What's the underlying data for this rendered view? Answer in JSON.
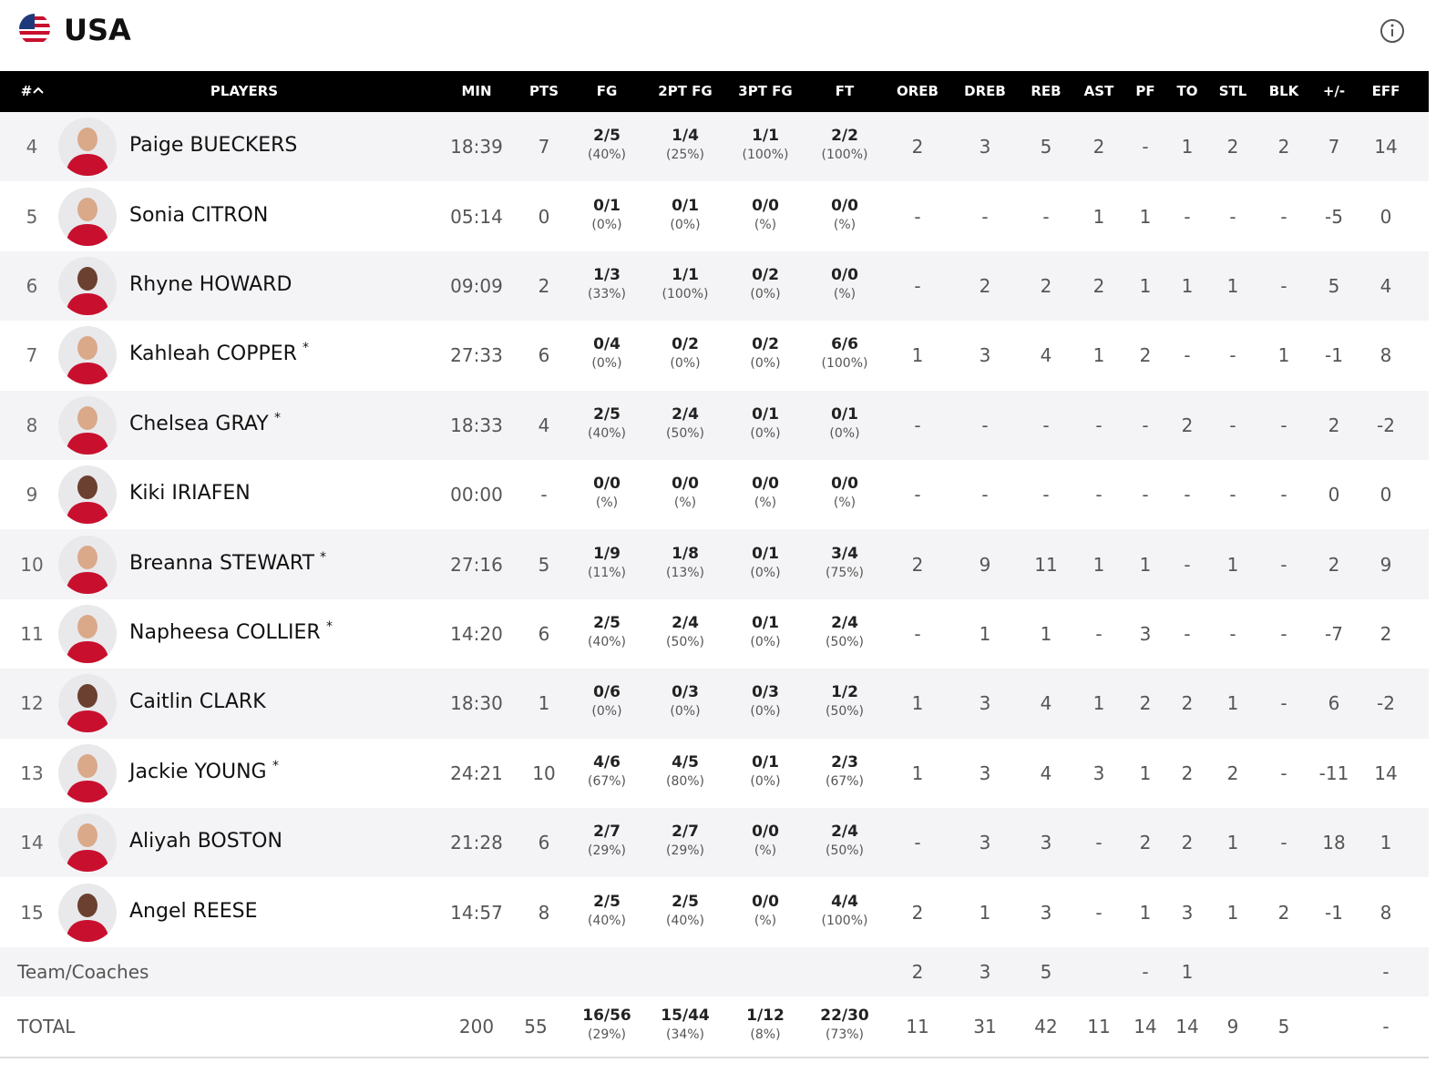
{
  "header": {
    "title": "USA"
  },
  "table": {
    "columns": [
      "#",
      "PLAYERS",
      "MIN",
      "PTS",
      "FG",
      "2PT FG",
      "3PT FG",
      "FT",
      "OREB",
      "DREB",
      "REB",
      "AST",
      "PF",
      "TO",
      "STL",
      "BLK",
      "+/-",
      "EFF"
    ],
    "rows": [
      {
        "number": "4",
        "player": "Paige BUECKERS",
        "min": "18:39",
        "pts": "7",
        "shots": [
          [
            "2/5",
            "(40%)"
          ],
          [
            "1/4",
            "(25%)"
          ],
          [
            "1/1",
            "(100%)"
          ],
          [
            "2/2",
            "(100%)"
          ]
        ],
        "stats": [
          "2",
          "3",
          "5",
          "2",
          "-",
          "1",
          "2",
          "2",
          "7",
          "14"
        ]
      },
      {
        "number": "5",
        "player": "Sonia CITRON",
        "min": "05:14",
        "pts": "0",
        "shots": [
          [
            "0/1",
            "(0%)"
          ],
          [
            "0/1",
            "(0%)"
          ],
          [
            "0/0",
            "(%)"
          ],
          [
            "0/0",
            "(%)"
          ]
        ],
        "stats": [
          "-",
          "-",
          "-",
          "1",
          "1",
          "-",
          "-",
          "-",
          "-5",
          "0"
        ]
      },
      {
        "number": "6",
        "player": "Rhyne HOWARD",
        "min": "09:09",
        "pts": "2",
        "shots": [
          [
            "1/3",
            "(33%)"
          ],
          [
            "1/1",
            "(100%)"
          ],
          [
            "0/2",
            "(0%)"
          ],
          [
            "0/0",
            "(%)"
          ]
        ],
        "stats": [
          "-",
          "2",
          "2",
          "2",
          "1",
          "1",
          "1",
          "-",
          "5",
          "4"
        ]
      },
      {
        "number": "7",
        "player": "Kahleah COPPER",
        "mark": "*",
        "min": "27:33",
        "pts": "6",
        "shots": [
          [
            "0/4",
            "(0%)"
          ],
          [
            "0/2",
            "(0%)"
          ],
          [
            "0/2",
            "(0%)"
          ],
          [
            "6/6",
            "(100%)"
          ]
        ],
        "stats": [
          "1",
          "3",
          "4",
          "1",
          "2",
          "-",
          "-",
          "1",
          "-1",
          "8"
        ]
      },
      {
        "number": "8",
        "player": "Chelsea GRAY",
        "mark": "*",
        "min": "18:33",
        "pts": "4",
        "shots": [
          [
            "2/5",
            "(40%)"
          ],
          [
            "2/4",
            "(50%)"
          ],
          [
            "0/1",
            "(0%)"
          ],
          [
            "0/1",
            "(0%)"
          ]
        ],
        "stats": [
          "-",
          "-",
          "-",
          "-",
          "-",
          "2",
          "-",
          "-",
          "2",
          "-2"
        ]
      },
      {
        "number": "9",
        "player": "Kiki IRIAFEN",
        "min": "00:00",
        "pts": "-",
        "shots": [
          [
            "0/0",
            "(%)"
          ],
          [
            "0/0",
            "(%)"
          ],
          [
            "0/0",
            "(%)"
          ],
          [
            "0/0",
            "(%)"
          ]
        ],
        "stats": [
          "-",
          "-",
          "-",
          "-",
          "-",
          "-",
          "-",
          "-",
          "0",
          "0"
        ]
      },
      {
        "number": "10",
        "player": "Breanna STEWART",
        "mark": "*",
        "min": "27:16",
        "pts": "5",
        "shots": [
          [
            "1/9",
            "(11%)"
          ],
          [
            "1/8",
            "(13%)"
          ],
          [
            "0/1",
            "(0%)"
          ],
          [
            "3/4",
            "(75%)"
          ]
        ],
        "stats": [
          "2",
          "9",
          "11",
          "1",
          "1",
          "-",
          "1",
          "-",
          "2",
          "9"
        ]
      },
      {
        "number": "11",
        "player": "Napheesa COLLIER",
        "mark": "*",
        "min": "14:20",
        "pts": "6",
        "shots": [
          [
            "2/5",
            "(40%)"
          ],
          [
            "2/4",
            "(50%)"
          ],
          [
            "0/1",
            "(0%)"
          ],
          [
            "2/4",
            "(50%)"
          ]
        ],
        "stats": [
          "-",
          "1",
          "1",
          "-",
          "3",
          "-",
          "-",
          "-",
          "-7",
          "2"
        ]
      },
      {
        "number": "12",
        "player": "Caitlin CLARK",
        "min": "18:30",
        "pts": "1",
        "shots": [
          [
            "0/6",
            "(0%)"
          ],
          [
            "0/3",
            "(0%)"
          ],
          [
            "0/3",
            "(0%)"
          ],
          [
            "1/2",
            "(50%)"
          ]
        ],
        "stats": [
          "1",
          "3",
          "4",
          "1",
          "2",
          "2",
          "1",
          "-",
          "6",
          "-2"
        ]
      },
      {
        "number": "13",
        "player": "Jackie YOUNG",
        "mark": "*",
        "min": "24:21",
        "pts": "10",
        "shots": [
          [
            "4/6",
            "(67%)"
          ],
          [
            "4/5",
            "(80%)"
          ],
          [
            "0/1",
            "(0%)"
          ],
          [
            "2/3",
            "(67%)"
          ]
        ],
        "stats": [
          "1",
          "3",
          "4",
          "3",
          "1",
          "2",
          "2",
          "-",
          "-11",
          "14"
        ]
      },
      {
        "number": "14",
        "player": "Aliyah BOSTON",
        "min": "21:28",
        "pts": "6",
        "shots": [
          [
            "2/7",
            "(29%)"
          ],
          [
            "2/7",
            "(29%)"
          ],
          [
            "0/0",
            "(%)"
          ],
          [
            "2/4",
            "(50%)"
          ]
        ],
        "stats": [
          "-",
          "3",
          "3",
          "-",
          "2",
          "2",
          "1",
          "-",
          "18",
          "1"
        ]
      },
      {
        "number": "15",
        "player": "Angel REESE",
        "min": "14:57",
        "pts": "8",
        "shots": [
          [
            "2/5",
            "(40%)"
          ],
          [
            "2/5",
            "(40%)"
          ],
          [
            "0/0",
            "(%)"
          ],
          [
            "4/4",
            "(100%)"
          ]
        ],
        "stats": [
          "2",
          "1",
          "3",
          "-",
          "1",
          "3",
          "1",
          "2",
          "-1",
          "8"
        ]
      }
    ],
    "team": {
      "label": "Team/Coaches",
      "stats": [
        "2",
        "3",
        "5",
        null,
        "-",
        "1",
        null,
        null,
        null,
        "-"
      ]
    },
    "total": {
      "label": "TOTAL",
      "min": "200",
      "pts": "55",
      "shots": [
        [
          "16/56",
          "(29%)"
        ],
        [
          "15/44",
          "(34%)"
        ],
        [
          "1/12",
          "(8%)"
        ],
        [
          "22/30",
          "(73%)"
        ]
      ],
      "stats": [
        "11",
        "31",
        "42",
        "11",
        "14",
        "14",
        "9",
        "5",
        null,
        "-"
      ]
    }
  }
}
